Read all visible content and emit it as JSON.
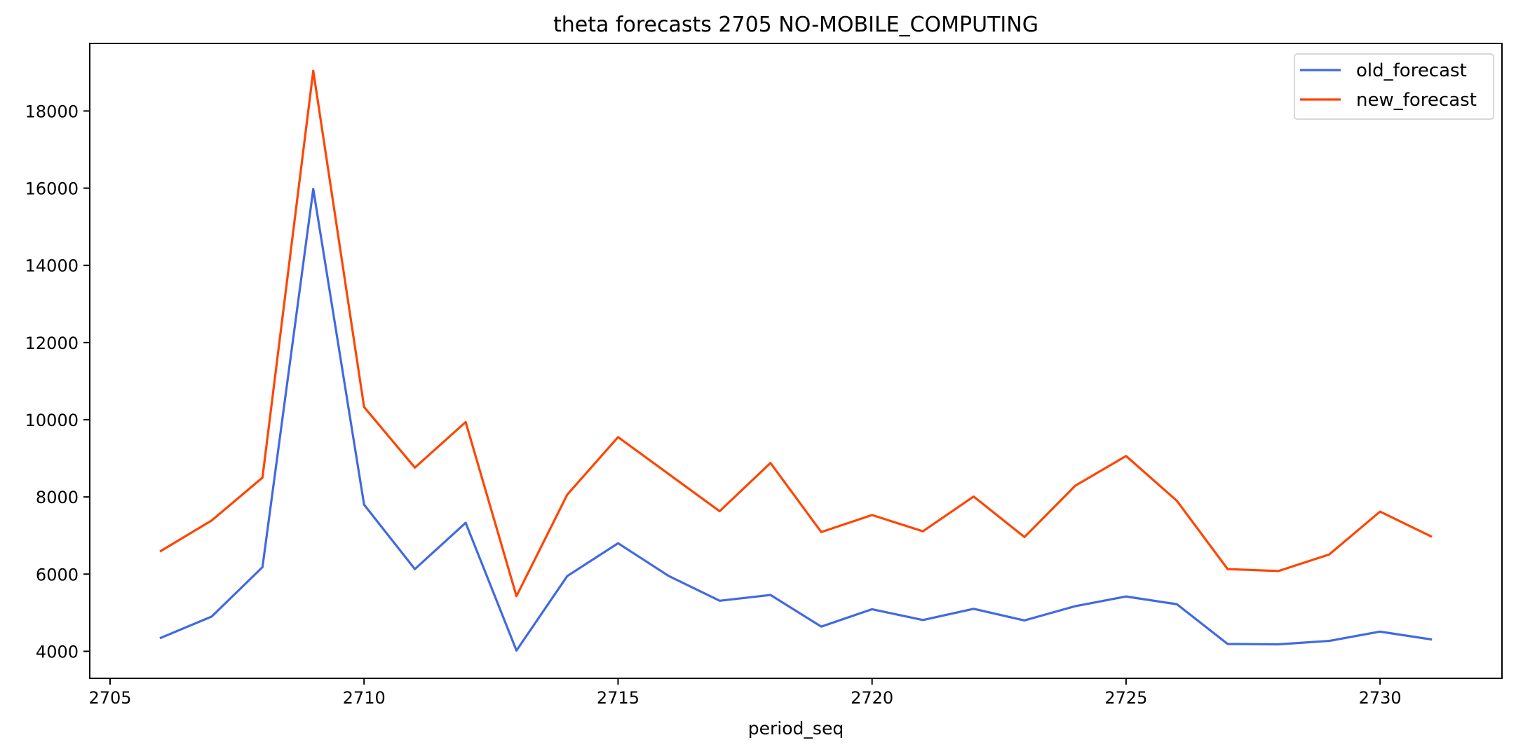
{
  "chart_data": {
    "type": "line",
    "title": "theta forecasts 2705 NO-MOBILE_COMPUTING",
    "xlabel": "period_seq",
    "ylabel": "",
    "xlim": [
      2704.6,
      2732.4
    ],
    "ylim": [
      3300,
      19750
    ],
    "xticks": [
      2705,
      2710,
      2715,
      2720,
      2725,
      2730
    ],
    "yticks": [
      4000,
      6000,
      8000,
      10000,
      12000,
      14000,
      16000,
      18000
    ],
    "grid": false,
    "legend_position": "top-right",
    "x": [
      2706,
      2707,
      2708,
      2709,
      2710,
      2711,
      2712,
      2713,
      2714,
      2715,
      2716,
      2717,
      2718,
      2719,
      2720,
      2721,
      2722,
      2723,
      2724,
      2725,
      2726,
      2727,
      2728,
      2729,
      2730,
      2731
    ],
    "series": [
      {
        "name": "old_forecast",
        "color": "#4169e1",
        "values": [
          4350,
          4900,
          6180,
          15980,
          7800,
          6130,
          7330,
          4020,
          5950,
          6800,
          5950,
          5310,
          5460,
          4640,
          5090,
          4810,
          5100,
          4800,
          5170,
          5420,
          5220,
          4190,
          4180,
          4270,
          4510,
          4310
        ]
      },
      {
        "name": "new_forecast",
        "color": "#ff4500",
        "values": [
          6600,
          7390,
          8500,
          19040,
          10330,
          8760,
          9940,
          5430,
          8060,
          9550,
          8590,
          7630,
          8880,
          7090,
          7530,
          7110,
          8010,
          6960,
          8290,
          9060,
          7900,
          6130,
          6080,
          6510,
          7620,
          6980
        ]
      }
    ]
  }
}
